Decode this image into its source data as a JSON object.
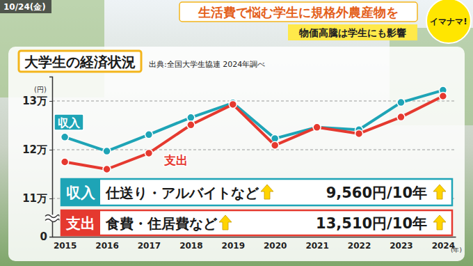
{
  "page": {
    "date": "10/24(金)",
    "headline": "生活費で悩む学生に規格外農産物を",
    "subheadline": "物価高騰は学生にも影響",
    "logo": "イマナマ!"
  },
  "chart_data": {
    "type": "line",
    "title": "大学生の経済状況",
    "subtitle": "出典:全国大学生協連 2024年調べ",
    "xlabel": "(年)",
    "ylabel": "(円)",
    "categories": [
      "2015",
      "2016",
      "2017",
      "2018",
      "2019",
      "2020",
      "2021",
      "2022",
      "2023",
      "2024"
    ],
    "series": [
      {
        "name": "収入",
        "color": "#1ea4b6",
        "marker": "circle",
        "values": [
          122600,
          119700,
          123100,
          126600,
          129600,
          122300,
          124600,
          124100,
          129700,
          132200
        ]
      },
      {
        "name": "支出",
        "color": "#e5392f",
        "marker": "circle",
        "values": [
          117500,
          116000,
          119300,
          125100,
          129300,
          120900,
          124600,
          123300,
          126700,
          131000
        ]
      }
    ],
    "ylim": [
      0,
      135000
    ],
    "yticks": [
      0,
      {
        "value": 110000,
        "label": "11万"
      },
      {
        "value": 120000,
        "label": "12万"
      },
      {
        "value": 130000,
        "label": "13万"
      }
    ],
    "grid": true,
    "annotations": [
      {
        "text": "仕送り・アルバイトなど",
        "amount": "9,560円/10年"
      },
      {
        "text": "食費・住居費など",
        "amount": "13,510円/10年"
      }
    ]
  }
}
